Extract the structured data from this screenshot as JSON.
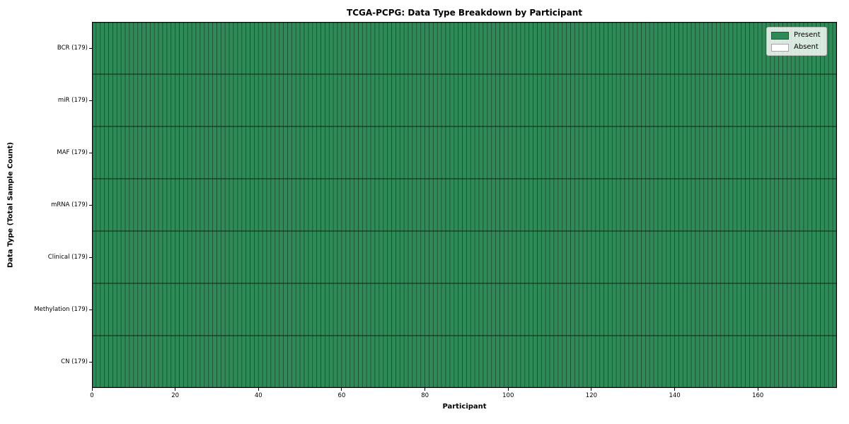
{
  "chart_data": {
    "type": "heatmap",
    "title": "TCGA-PCPG: Data Type Breakdown by Participant",
    "xlabel": "Participant",
    "ylabel": "Data Type (Total Sample Count)",
    "n_participants": 179,
    "xlim": [
      0,
      179
    ],
    "xticks": [
      0,
      20,
      40,
      60,
      80,
      100,
      120,
      140,
      160
    ],
    "grid": false,
    "legend_position": "upper right",
    "rows": [
      {
        "label": "BCR (179)",
        "data_type": "BCR",
        "total_samples": 179,
        "present_count": 179,
        "absent_count": 0
      },
      {
        "label": "miR (179)",
        "data_type": "miR",
        "total_samples": 179,
        "present_count": 179,
        "absent_count": 0
      },
      {
        "label": "MAF (179)",
        "data_type": "MAF",
        "total_samples": 179,
        "present_count": 179,
        "absent_count": 0
      },
      {
        "label": "mRNA (179)",
        "data_type": "mRNA",
        "total_samples": 179,
        "present_count": 179,
        "absent_count": 0
      },
      {
        "label": "Clinical (179)",
        "data_type": "Clinical",
        "total_samples": 179,
        "present_count": 179,
        "absent_count": 0
      },
      {
        "label": "Methylation (179)",
        "data_type": "Methylation",
        "total_samples": 179,
        "present_count": 179,
        "absent_count": 0
      },
      {
        "label": "CN (179)",
        "data_type": "CN",
        "total_samples": 179,
        "present_count": 179,
        "absent_count": 0
      }
    ],
    "legend": [
      {
        "label": "Present",
        "color": "#2E8B57"
      },
      {
        "label": "Absent",
        "color": "#FFFFFF"
      }
    ],
    "colors": {
      "present": "#2E8B57",
      "absent": "#FFFFFF",
      "cell_edge": "rgba(0,0,0,0.38)",
      "row_divider": "rgba(0,0,0,0.55)",
      "spine": "#000000"
    }
  }
}
